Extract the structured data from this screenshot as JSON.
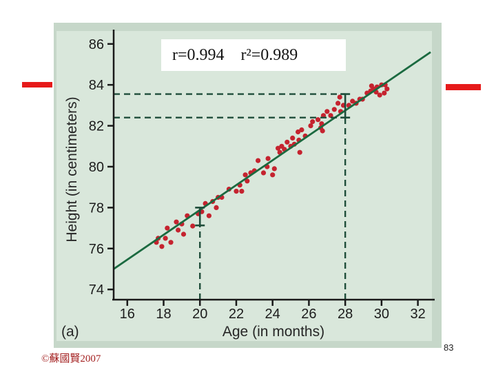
{
  "page": {
    "background": "#ffffff",
    "page_number": "83",
    "copyright": "©蘇國賢2007"
  },
  "decor": {
    "dash_color": "#e61a1a"
  },
  "annotation": {
    "r": "r=0.994",
    "r2": "r²=0.989"
  },
  "chart_data": {
    "type": "scatter",
    "title": "",
    "xlabel": "Age (in months)",
    "ylabel": "Height (in centimeters)",
    "panel_label": "(a)",
    "xlim": [
      15.25,
      32.85
    ],
    "ylim": [
      73.5,
      86.7
    ],
    "xticks": [
      16,
      18,
      20,
      22,
      24,
      26,
      28,
      30,
      32
    ],
    "yticks": [
      74,
      76,
      78,
      80,
      82,
      84,
      86
    ],
    "grid": false,
    "r": 0.994,
    "r_squared": 0.989,
    "regression_line": {
      "x1": 15.25,
      "y1": 75.0,
      "x2": 32.7,
      "y2": 85.6
    },
    "prediction_guides": {
      "horizontal_dashed_y": [
        83.55,
        82.4
      ],
      "vertical_dashed_x": [
        20,
        28
      ],
      "interval_at_x20": [
        77.13,
        78.0
      ],
      "interval_at_x28": [
        82.4,
        83.55
      ]
    },
    "colors": {
      "point": "#c5232f",
      "line": "#1b6a40",
      "dashed": "#1e4d3a",
      "axis": "#1a1a1a",
      "figure_bg": "#c6d7c9",
      "plot_bg": "#d9e7db"
    },
    "points": [
      [
        17.6,
        76.3
      ],
      [
        17.7,
        76.5
      ],
      [
        17.9,
        76.1
      ],
      [
        18.1,
        76.5
      ],
      [
        18.2,
        77.0
      ],
      [
        18.4,
        76.3
      ],
      [
        18.7,
        77.3
      ],
      [
        18.8,
        76.9
      ],
      [
        19.0,
        77.2
      ],
      [
        19.1,
        76.7
      ],
      [
        19.3,
        77.6
      ],
      [
        19.6,
        77.1
      ],
      [
        19.9,
        77.7
      ],
      [
        20.1,
        77.8
      ],
      [
        20.3,
        78.2
      ],
      [
        20.5,
        77.6
      ],
      [
        20.7,
        78.3
      ],
      [
        20.9,
        78.0
      ],
      [
        21.0,
        78.5
      ],
      [
        21.2,
        78.5
      ],
      [
        21.6,
        78.9
      ],
      [
        22.0,
        78.8
      ],
      [
        22.2,
        79.1
      ],
      [
        22.3,
        78.8
      ],
      [
        22.5,
        79.6
      ],
      [
        22.6,
        79.3
      ],
      [
        22.8,
        79.7
      ],
      [
        23.0,
        79.8
      ],
      [
        23.2,
        80.3
      ],
      [
        23.5,
        79.7
      ],
      [
        23.7,
        80.0
      ],
      [
        23.75,
        80.4
      ],
      [
        24.0,
        79.6
      ],
      [
        24.1,
        79.9
      ],
      [
        24.3,
        80.9
      ],
      [
        24.4,
        80.7
      ],
      [
        24.5,
        81.0
      ],
      [
        24.65,
        80.85
      ],
      [
        24.8,
        81.2
      ],
      [
        25.0,
        81.0
      ],
      [
        25.1,
        81.4
      ],
      [
        25.2,
        81.1
      ],
      [
        25.4,
        81.7
      ],
      [
        25.45,
        81.3
      ],
      [
        25.5,
        80.7
      ],
      [
        25.6,
        81.8
      ],
      [
        25.8,
        81.5
      ],
      [
        26.1,
        82.0
      ],
      [
        26.2,
        82.2
      ],
      [
        26.5,
        82.3
      ],
      [
        26.65,
        81.9
      ],
      [
        26.7,
        82.1
      ],
      [
        26.75,
        81.75
      ],
      [
        26.8,
        82.5
      ],
      [
        27.0,
        82.7
      ],
      [
        27.2,
        82.5
      ],
      [
        27.4,
        82.8
      ],
      [
        27.6,
        83.1
      ],
      [
        27.7,
        83.4
      ],
      [
        27.75,
        82.7
      ],
      [
        27.9,
        83.0
      ],
      [
        28.2,
        83.0
      ],
      [
        28.4,
        83.2
      ],
      [
        28.6,
        83.1
      ],
      [
        28.8,
        83.3
      ],
      [
        28.95,
        83.3
      ],
      [
        29.2,
        83.6
      ],
      [
        29.4,
        83.7
      ],
      [
        29.45,
        83.95
      ],
      [
        29.55,
        83.8
      ],
      [
        29.7,
        83.65
      ],
      [
        29.75,
        83.9
      ],
      [
        29.9,
        83.5
      ],
      [
        30.0,
        84.0
      ],
      [
        30.15,
        83.6
      ],
      [
        30.2,
        84.0
      ],
      [
        30.3,
        83.8
      ]
    ]
  }
}
